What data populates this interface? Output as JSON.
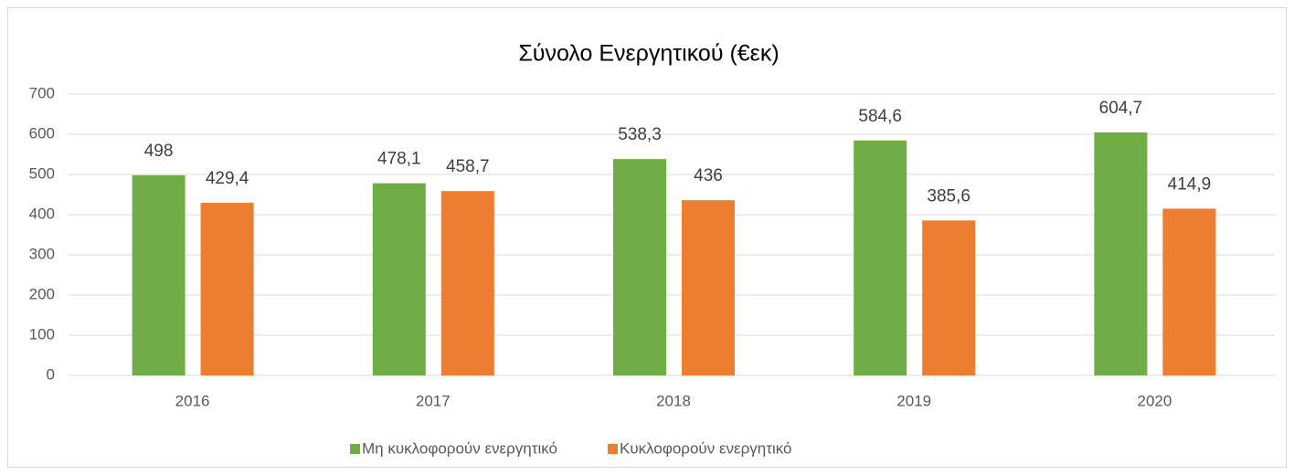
{
  "chart_data": {
    "type": "bar",
    "title": "Σύνολο Ενεργητικού (€εκ)",
    "categories": [
      "2016",
      "2017",
      "2018",
      "2019",
      "2020"
    ],
    "series": [
      {
        "name": "Μη κυκλοφορούν ενεργητικό",
        "color": "#70ad47",
        "values": [
          498,
          478.1,
          538.3,
          584.6,
          604.7
        ],
        "value_labels": [
          "498",
          "478,1",
          "538,3",
          "584,6",
          "604,7"
        ]
      },
      {
        "name": "Κυκλοφορούν ενεργητικό",
        "color": "#ed7d31",
        "values": [
          429.4,
          458.7,
          436,
          385.6,
          414.9
        ],
        "value_labels": [
          "429,4",
          "458,7",
          "436",
          "385,6",
          "414,9"
        ]
      }
    ],
    "ylim": [
      0,
      700
    ],
    "yticks": [
      0,
      100,
      200,
      300,
      400,
      500,
      600,
      700
    ],
    "grid": true,
    "legend": "bottom"
  }
}
